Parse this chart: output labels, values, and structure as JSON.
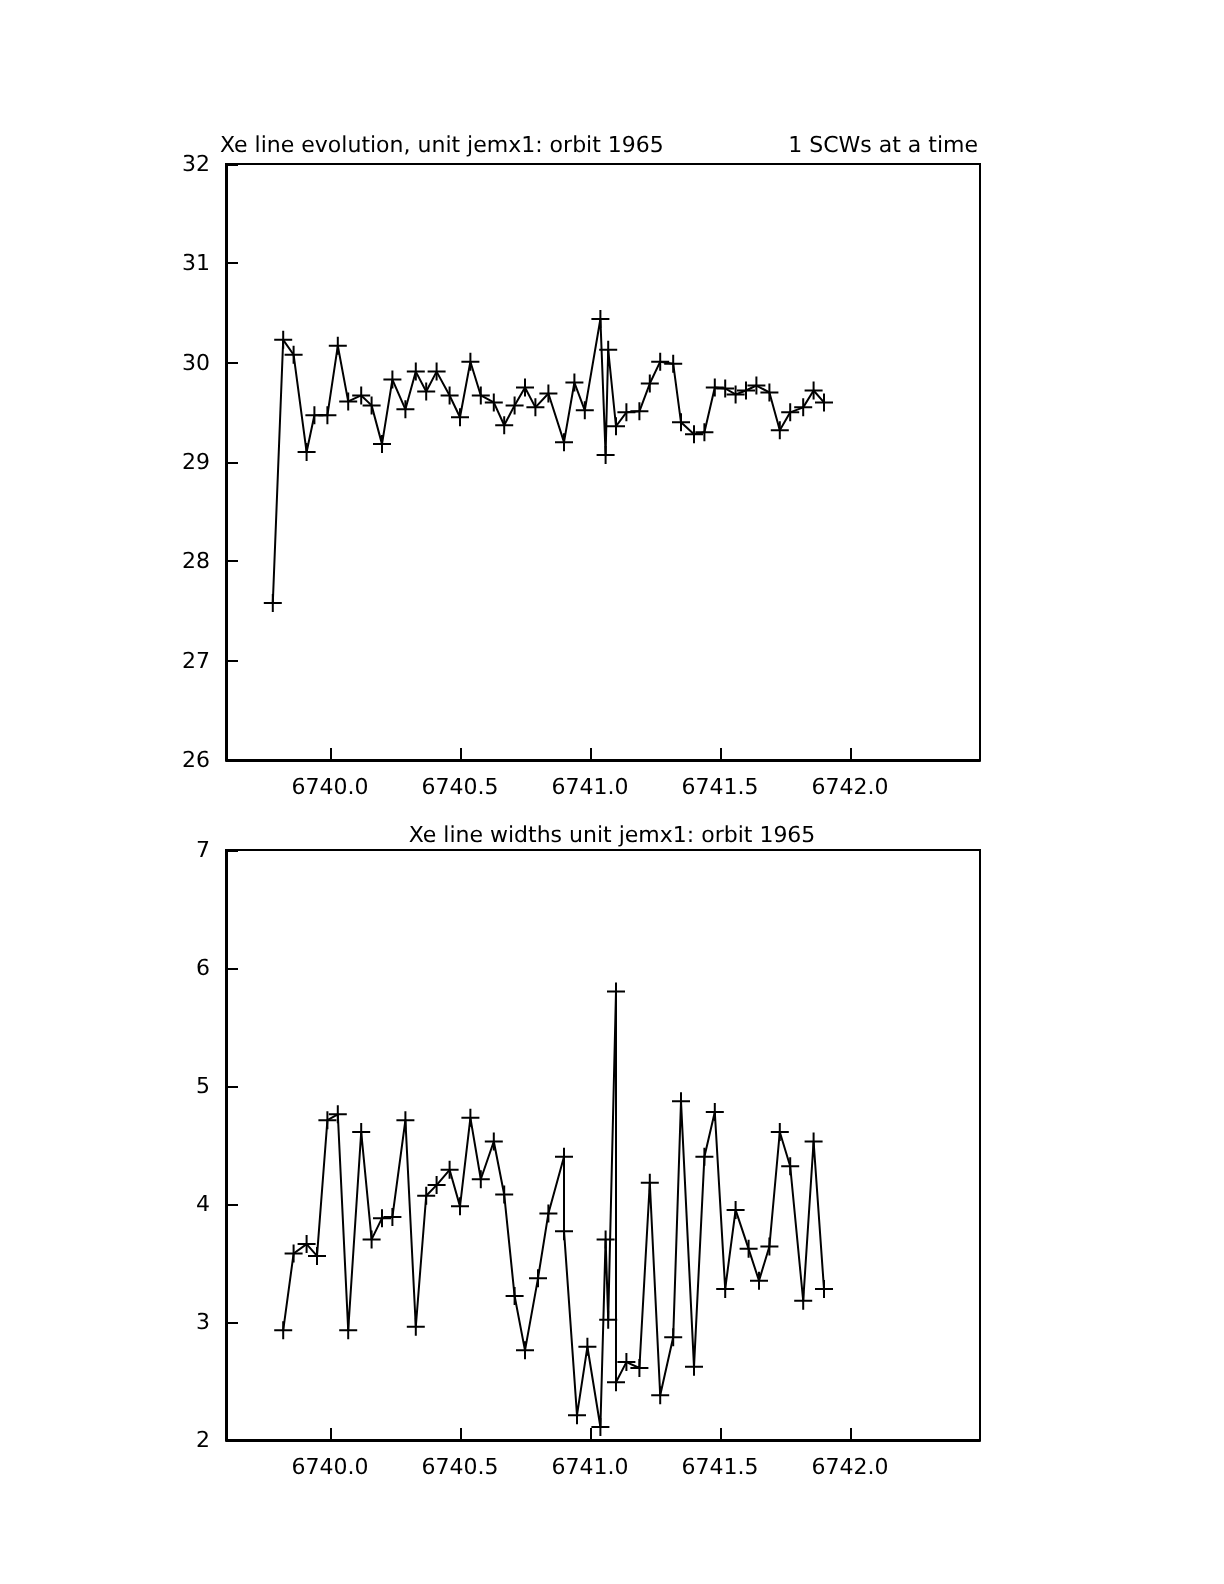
{
  "chart_data": [
    {
      "type": "line",
      "title": "Xe line evolution, unit jemx1: orbit 1965",
      "subtitle": "1 SCWs at a time",
      "color": "#000000",
      "marker": "cross",
      "line_style": "solid",
      "x": [
        6739.78,
        6739.82,
        6739.86,
        6739.91,
        6739.94,
        6739.99,
        6740.03,
        6740.07,
        6740.12,
        6740.16,
        6740.2,
        6740.24,
        6740.29,
        6740.33,
        6740.37,
        6740.41,
        6740.46,
        6740.5,
        6740.54,
        6740.58,
        6740.63,
        6740.67,
        6740.71,
        6740.75,
        6740.79,
        6740.84,
        6740.9,
        6740.94,
        6740.98,
        6741.04,
        6741.06,
        6741.07,
        6741.1,
        6741.14,
        6741.19,
        6741.23,
        6741.27,
        6741.32,
        6741.35,
        6741.4,
        6741.44,
        6741.48,
        6741.52,
        6741.56,
        6741.6,
        6741.64,
        6741.69,
        6741.73,
        6741.77,
        6741.82,
        6741.86,
        6741.9
      ],
      "values": [
        27.58,
        30.23,
        30.08,
        29.1,
        29.47,
        29.47,
        30.17,
        29.61,
        29.67,
        29.57,
        29.18,
        29.83,
        29.53,
        29.91,
        29.71,
        29.91,
        29.67,
        29.45,
        30.01,
        29.67,
        29.6,
        29.37,
        29.57,
        29.75,
        29.55,
        29.69,
        29.2,
        29.8,
        29.52,
        30.44,
        29.07,
        30.13,
        29.36,
        29.5,
        29.51,
        29.79,
        30.01,
        29.99,
        29.4,
        29.28,
        29.3,
        29.75,
        29.74,
        29.68,
        29.72,
        29.77,
        29.7,
        29.32,
        29.5,
        29.55,
        29.72,
        29.6
      ],
      "xlim": [
        6739.6,
        6742.5
      ],
      "xticks": [
        {
          "value": 6740,
          "label": "6740.0"
        },
        {
          "value": 6740.5,
          "label": "6740.5"
        },
        {
          "value": 6741,
          "label": "6741.0"
        },
        {
          "value": 6741.5,
          "label": "6741.5"
        },
        {
          "value": 6742,
          "label": "6742.0"
        }
      ],
      "ylim": [
        26,
        32
      ],
      "yticks": [
        26,
        27,
        28,
        29,
        30,
        31,
        32
      ]
    },
    {
      "type": "line",
      "title": "Xe line widths unit jemx1: orbit 1965",
      "color": "#000000",
      "marker": "cross",
      "line_style": "solid",
      "x": [
        6739.82,
        6739.86,
        6739.91,
        6739.95,
        6739.99,
        6740.03,
        6740.07,
        6740.12,
        6740.16,
        6740.2,
        6740.24,
        6740.29,
        6740.33,
        6740.37,
        6740.41,
        6740.46,
        6740.5,
        6740.54,
        6740.58,
        6740.63,
        6740.67,
        6740.71,
        6740.75,
        6740.8,
        6740.84,
        6740.9,
        6740.9,
        6740.95,
        6740.99,
        6741.04,
        6741.06,
        6741.07,
        6741.1,
        6741.1,
        6741.14,
        6741.19,
        6741.23,
        6741.27,
        6741.32,
        6741.35,
        6741.4,
        6741.44,
        6741.48,
        6741.52,
        6741.56,
        6741.61,
        6741.65,
        6741.69,
        6741.73,
        6741.77,
        6741.82,
        6741.86,
        6741.9
      ],
      "values": [
        2.93,
        3.58,
        3.66,
        3.56,
        4.71,
        4.76,
        2.93,
        4.61,
        3.7,
        3.88,
        3.89,
        4.71,
        2.96,
        4.07,
        4.16,
        4.29,
        3.98,
        4.73,
        4.21,
        4.53,
        4.08,
        3.22,
        2.76,
        3.37,
        3.92,
        4.4,
        3.77,
        2.21,
        2.79,
        2.11,
        3.7,
        3.02,
        5.8,
        2.49,
        2.66,
        2.61,
        4.18,
        2.38,
        2.87,
        4.87,
        2.62,
        4.4,
        4.78,
        3.28,
        3.95,
        3.62,
        3.35,
        3.64,
        4.61,
        4.32,
        3.18,
        4.53,
        3.28
      ],
      "xlim": [
        6739.6,
        6742.5
      ],
      "xticks": [
        {
          "value": 6740,
          "label": "6740.0"
        },
        {
          "value": 6740.5,
          "label": "6740.5"
        },
        {
          "value": 6741,
          "label": "6741.0"
        },
        {
          "value": 6741.5,
          "label": "6741.5"
        },
        {
          "value": 6742,
          "label": "6742.0"
        }
      ],
      "ylim": [
        2,
        7
      ],
      "yticks": [
        2,
        3,
        4,
        5,
        6,
        7
      ]
    }
  ]
}
